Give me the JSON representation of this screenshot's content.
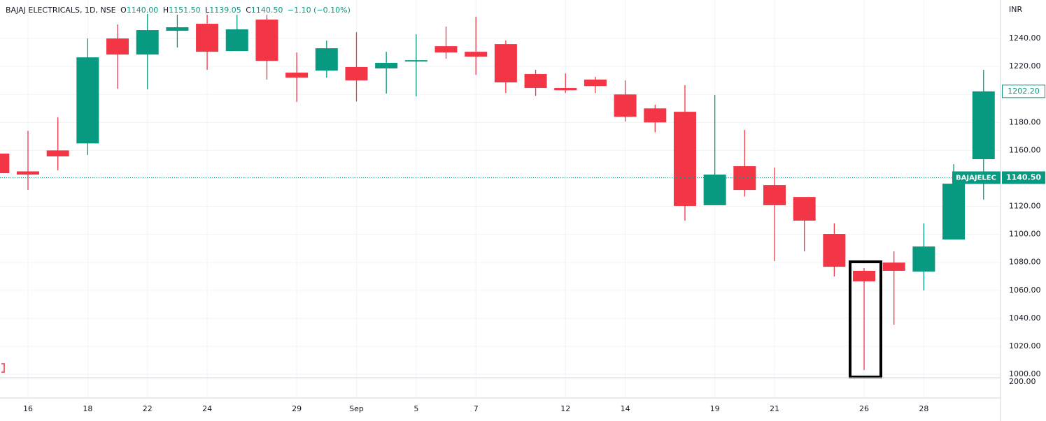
{
  "chart_data": {
    "type": "candlestick",
    "header": {
      "symbol": "BAJAJ ELECTRICALS, 1D, NSE",
      "open_label": "O",
      "open": "1140.00",
      "high_label": "H",
      "high": "1151.50",
      "low_label": "L",
      "low": "1139.05",
      "close_label": "C",
      "close": "1140.50",
      "change": "−1.10 (−0.10%)"
    },
    "currency": "INR",
    "categories": [
      null,
      "16",
      null,
      "18",
      null,
      "22",
      null,
      "24",
      null,
      null,
      "29",
      null,
      "Sep",
      null,
      "5",
      null,
      "7",
      null,
      null,
      "12",
      null,
      "14",
      null,
      null,
      "19",
      null,
      "21",
      null,
      null,
      "26",
      null,
      "28",
      null,
      null
    ],
    "open": [
      1157.7,
      1145,
      1160,
      1165,
      1240,
      1228.5,
      1245.5,
      1250.5,
      1231,
      1253.5,
      1215.6,
      1217,
      1219.6,
      1218.6,
      1223.5,
      1234.5,
      1230.5,
      1236,
      1214.6,
      1204.6,
      1210.6,
      1200,
      1190,
      1187.6,
      1120.8,
      1148.7,
      1135.2,
      1126.7,
      1100.3,
      1073.9,
      1079.8,
      1073.4,
      1096.3,
      1153.7
    ],
    "high": [
      1157.7,
      1174,
      1183.6,
      1240,
      1250,
      1257.5,
      1257,
      1257,
      1257,
      1257,
      1230,
      1238.5,
      1244.5,
      1230.5,
      1243,
      1248.5,
      1255.5,
      1238.5,
      1217.6,
      1215,
      1212.6,
      1210,
      1192.6,
      1206.6,
      1199.6,
      1174.6,
      1147.7,
      1126.7,
      1107.8,
      1075.8,
      1087.8,
      1107.8,
      1150.2,
      1217.6
    ],
    "low": [
      1143.7,
      1131.7,
      1145.7,
      1156.7,
      1204,
      1203.6,
      1233.5,
      1217.6,
      1231,
      1210.6,
      1194.6,
      1212,
      1195,
      1200.6,
      1198.6,
      1225.5,
      1214,
      1201,
      1199,
      1201,
      1201,
      1180.6,
      1173,
      1109.8,
      1120.8,
      1127,
      1080.8,
      1087.8,
      1069.9,
      1003,
      1035.4,
      1059.9,
      1096.3,
      1124.8
    ],
    "close": [
      1143.7,
      1142.7,
      1155.7,
      1226.5,
      1228.5,
      1246,
      1248,
      1230.5,
      1246.5,
      1224,
      1212,
      1233,
      1210,
      1222.6,
      1224.5,
      1230,
      1227,
      1208.6,
      1204.6,
      1203,
      1206,
      1184,
      1180,
      1120.3,
      1142.7,
      1131.7,
      1120.8,
      1109.8,
      1076.8,
      1066.4,
      1073.9,
      1091.3,
      1136.2,
      1202.2
    ],
    "up_color": "#089981",
    "down_color": "#f23645",
    "ylim": [
      997.5,
      1267.5
    ],
    "yticks": [
      {
        "value": 1000,
        "label": "1000.00"
      },
      {
        "value": 1020,
        "label": "1020.00"
      },
      {
        "value": 1040,
        "label": "1040.00"
      },
      {
        "value": 1060,
        "label": "1060.00"
      },
      {
        "value": 1080,
        "label": "1080.00"
      },
      {
        "value": 1100,
        "label": "1100.00"
      },
      {
        "value": 1120,
        "label": "1120.00"
      },
      {
        "value": 1140,
        "label": "1140.00"
      },
      {
        "value": 1160,
        "label": "1160.00"
      },
      {
        "value": 1180,
        "label": "1180.00"
      },
      {
        "value": 1200,
        "label": "1200.00"
      },
      {
        "value": 1220,
        "label": "1220.00"
      },
      {
        "value": 1240,
        "label": "1240.00"
      }
    ],
    "grid": true,
    "last_price": {
      "value": 1202.2,
      "label": "1202.20"
    },
    "current_price": {
      "value": 1140.5,
      "label": "1140.50",
      "tag": "BAJAJELEC"
    },
    "lower_pane_label": "200.00"
  }
}
